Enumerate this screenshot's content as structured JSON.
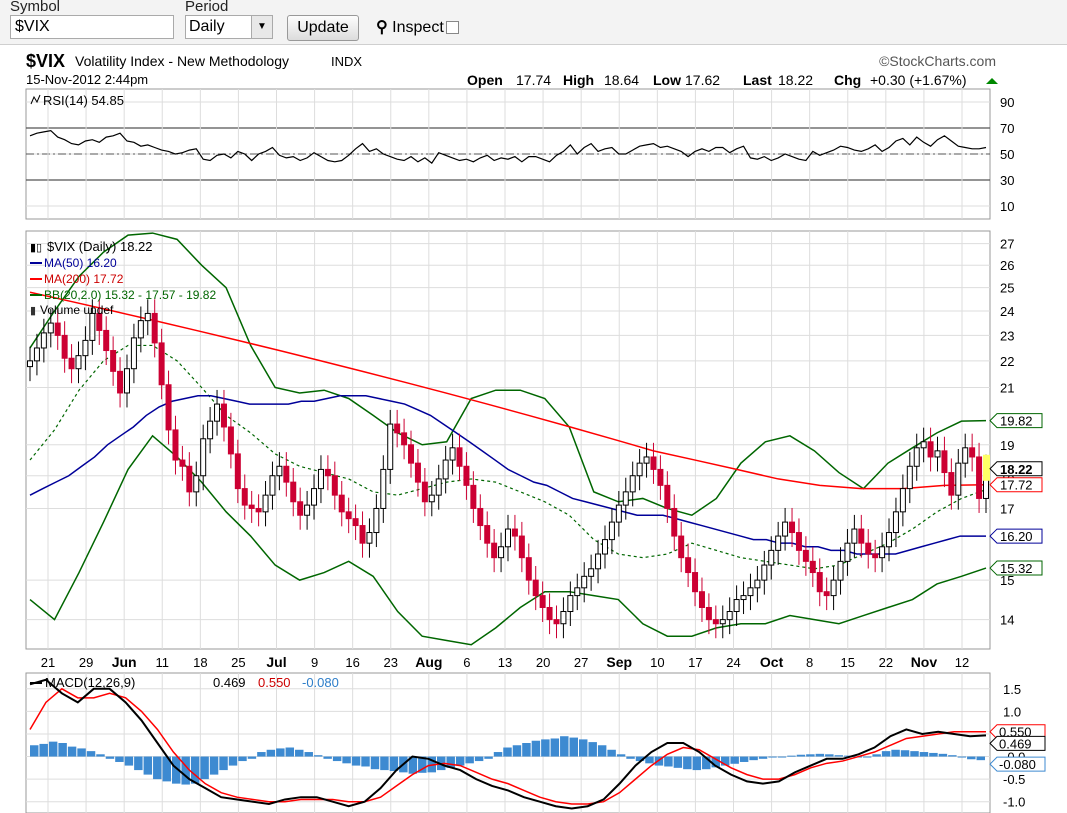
{
  "toolbar": {
    "symbol_label": "Symbol",
    "symbol_value": "$VIX",
    "period_label": "Period",
    "period_value": "Daily",
    "update_label": "Update",
    "inspect_label": "Inspect"
  },
  "header": {
    "symbol": "$VIX",
    "name": "Volatility Index - New Methodology",
    "exchange": "INDX",
    "date": "15-Nov-2012 2:44pm",
    "brand": "©StockCharts.com",
    "open_label": "Open",
    "open": "17.74",
    "high_label": "High",
    "high": "18.64",
    "low_label": "Low",
    "low": "17.62",
    "last_label": "Last",
    "last": "18.22",
    "chg_label": "Chg",
    "chg": "+0.30 (+1.67%)"
  },
  "colors": {
    "up": "#000000",
    "down": "#cc0033",
    "ma50": "#000099",
    "ma200": "#ff0000",
    "bb": "#006600",
    "hist": "#3d8ad1"
  },
  "chart_data": [
    {
      "type": "line",
      "title": "RSI(14) 54.85",
      "rsi_value": "54.85",
      "yticks": [
        "90",
        "70",
        "50",
        "30",
        "10"
      ],
      "ylim": [
        0,
        100
      ],
      "levels": [
        70,
        30
      ],
      "values": [
        64,
        66,
        67,
        68,
        63,
        61,
        58,
        57,
        60,
        61,
        59,
        63,
        64,
        66,
        60,
        59,
        56,
        57,
        55,
        53,
        52,
        50,
        51,
        53,
        54,
        46,
        45,
        49,
        50,
        47,
        52,
        50,
        45,
        50,
        52,
        55,
        49,
        47,
        48,
        45,
        47,
        51,
        48,
        45,
        44,
        45,
        49,
        54,
        58,
        52,
        54,
        50,
        48,
        46,
        45,
        48,
        44,
        47,
        43,
        51,
        49,
        47,
        45,
        46,
        44,
        47,
        49,
        45,
        47,
        46,
        48,
        44,
        48,
        48,
        46,
        44,
        49,
        52,
        57,
        50,
        55,
        58,
        52,
        54,
        55,
        50,
        50,
        53,
        56,
        57,
        58,
        55,
        56,
        54,
        52,
        48,
        52,
        54,
        52,
        55,
        55,
        51,
        54,
        56,
        47,
        46,
        48,
        45,
        47,
        50,
        48,
        46,
        45,
        52,
        49,
        51,
        53,
        56,
        55,
        53,
        52,
        54,
        57,
        52,
        55,
        60,
        62,
        57,
        63,
        59,
        56,
        61,
        64,
        60,
        56,
        55,
        54,
        54,
        55
      ]
    },
    {
      "type": "candlestick",
      "title": "$VIX (Daily) 18.22",
      "legend": [
        "MA(50) 16.20",
        "MA(200) 17.72",
        "BB(20,2.0) 15.32 - 17.57 - 19.82",
        "Volume undef"
      ],
      "yticks": [
        27,
        26,
        25,
        24,
        23,
        22,
        21,
        19,
        18,
        17,
        15,
        14
      ],
      "ylim": [
        13.3,
        27.6
      ],
      "y_scale": "log",
      "xticks": [
        "21",
        "29",
        "Jun",
        "11",
        "18",
        "25",
        "Jul",
        "9",
        "16",
        "23",
        "Aug",
        "6",
        "13",
        "20",
        "27",
        "Sep",
        "10",
        "17",
        "24",
        "Oct",
        "8",
        "15",
        "22",
        "Nov",
        "12"
      ],
      "last_badges": {
        "bb_upper": "19.82",
        "last": "18.22",
        "ma200": "17.72",
        "ma50": "16.20",
        "bb_lower": "15.32"
      },
      "close": [
        22.0,
        22.5,
        23.1,
        23.5,
        23.0,
        22.1,
        21.7,
        22.2,
        22.8,
        23.9,
        23.2,
        22.4,
        21.6,
        20.8,
        21.7,
        22.9,
        23.6,
        23.9,
        22.7,
        21.1,
        19.5,
        18.5,
        18.3,
        17.5,
        18.0,
        19.2,
        19.8,
        20.4,
        19.6,
        18.7,
        17.6,
        17.1,
        17.0,
        16.9,
        17.4,
        18.0,
        18.3,
        17.8,
        17.2,
        16.8,
        17.1,
        17.6,
        18.2,
        18.0,
        17.4,
        16.9,
        16.7,
        16.5,
        16.0,
        16.3,
        17.0,
        18.2,
        19.7,
        19.4,
        19.0,
        18.4,
        17.8,
        17.2,
        17.4,
        17.9,
        18.5,
        18.9,
        18.3,
        17.7,
        17.0,
        16.5,
        16.0,
        15.6,
        15.9,
        16.4,
        16.2,
        15.6,
        15.0,
        14.6,
        14.3,
        14.0,
        13.9,
        14.2,
        14.6,
        14.8,
        15.1,
        15.3,
        15.7,
        16.1,
        16.6,
        17.1,
        17.5,
        18.0,
        18.4,
        18.6,
        18.2,
        17.7,
        17.0,
        16.2,
        15.6,
        15.2,
        14.7,
        14.3,
        14.0,
        13.9,
        14.0,
        14.2,
        14.5,
        14.6,
        14.8,
        15.0,
        15.4,
        15.8,
        16.2,
        16.6,
        16.3,
        15.8,
        15.5,
        15.2,
        14.7,
        14.6,
        15.0,
        15.5,
        16.0,
        16.4,
        16.0,
        15.7,
        15.6,
        15.9,
        16.3,
        16.9,
        17.6,
        18.3,
        18.9,
        19.1,
        18.6,
        18.8,
        18.1,
        17.4,
        18.4,
        18.9,
        18.6,
        17.3,
        18.22
      ],
      "ma50": [
        17.4,
        17.6,
        17.8,
        18.0,
        18.3,
        18.6,
        19.0,
        19.3,
        19.6,
        20.0,
        20.3,
        20.5,
        20.6,
        20.7,
        20.7,
        20.6,
        20.5,
        20.4,
        20.4,
        20.4,
        20.4,
        20.5,
        20.5,
        20.6,
        20.7,
        20.7,
        20.7,
        20.6,
        20.5,
        20.4,
        20.2,
        20.0,
        19.7,
        19.4,
        19.1,
        18.8,
        18.5,
        18.2,
        18.0,
        17.8,
        17.7,
        17.5,
        17.3,
        17.2,
        17.1,
        17.0,
        16.9,
        16.8,
        16.8,
        16.8,
        16.7,
        16.6,
        16.5,
        16.4,
        16.3,
        16.2,
        16.1,
        16.1,
        16.0,
        16.0,
        15.9,
        15.9,
        15.8,
        15.8,
        15.7,
        15.7,
        15.7,
        15.7,
        15.8,
        15.9,
        16.0,
        16.1,
        16.2,
        16.2,
        16.2
      ],
      "ma200": [
        24.8,
        24.4,
        24.0,
        23.6,
        23.2,
        22.8,
        22.4,
        22.0,
        21.6,
        21.2,
        20.8,
        20.4,
        20.0,
        19.6,
        19.2,
        18.8,
        18.5,
        18.2,
        17.9,
        17.7,
        17.6,
        17.6,
        17.7,
        17.72
      ],
      "bb_upper": [
        22.5,
        24.0,
        25.5,
        26.6,
        27.4,
        27.5,
        27.2,
        26.0,
        25.0,
        22.6,
        21.0,
        20.8,
        20.9,
        20.6,
        20.0,
        19.4,
        19.0,
        19.1,
        20.6,
        20.9,
        20.9,
        20.6,
        19.6,
        17.5,
        17.2,
        17.3,
        17.0,
        16.8,
        17.3,
        18.4,
        19.1,
        19.3,
        18.8,
        18.1,
        17.6,
        18.4,
        18.9,
        19.4,
        19.8,
        19.82
      ],
      "bb_mid": [
        18.5,
        19.5,
        20.9,
        22.0,
        22.6,
        22.6,
        22.0,
        21.0,
        20.0,
        19.4,
        18.7,
        18.3,
        18.1,
        17.9,
        17.5,
        17.4,
        17.6,
        17.8,
        17.9,
        17.8,
        17.5,
        17.2,
        16.8,
        16.1,
        15.7,
        15.6,
        15.7,
        16.0,
        15.8,
        15.6,
        15.5,
        15.4,
        15.3,
        15.4,
        15.7,
        16.0,
        16.4,
        16.9,
        17.3,
        17.57
      ],
      "bb_lower": [
        14.5,
        14.0,
        15.2,
        16.6,
        18.2,
        19.3,
        18.6,
        17.8,
        16.9,
        16.2,
        15.4,
        15.0,
        15.2,
        15.5,
        15.1,
        14.2,
        13.6,
        13.5,
        13.4,
        13.8,
        14.3,
        14.7,
        14.7,
        14.6,
        14.5,
        13.9,
        13.6,
        13.6,
        13.8,
        13.9,
        13.9,
        14.1,
        14.0,
        13.9,
        14.1,
        14.3,
        14.5,
        14.9,
        15.1,
        15.32
      ]
    },
    {
      "type": "line+bar",
      "title": "MACD(12,26,9)",
      "macd": "0.469",
      "signal": "0.550",
      "hist": "-0.080",
      "yticks": [
        "1.5",
        "1.0",
        "0.5",
        "-0.0",
        "-0.5",
        "-1.0"
      ],
      "ylim": [
        -1.25,
        1.85
      ],
      "macd_values": [
        1.6,
        1.7,
        1.4,
        1.2,
        1.5,
        1.5,
        1.2,
        0.8,
        0.3,
        -0.2,
        -0.5,
        -0.7,
        -0.9,
        -0.95,
        -1.0,
        -1.05,
        -0.95,
        -0.9,
        -0.9,
        -1.0,
        -1.1,
        -1.0,
        -0.7,
        -0.3,
        0.0,
        -0.05,
        -0.2,
        -0.3,
        -0.5,
        -0.65,
        -0.75,
        -0.9,
        -1.0,
        -1.1,
        -1.15,
        -1.1,
        -0.95,
        -0.6,
        -0.2,
        0.1,
        0.3,
        0.3,
        0.1,
        -0.2,
        -0.4,
        -0.55,
        -0.6,
        -0.55,
        -0.35,
        -0.2,
        -0.05,
        -0.05,
        0.05,
        0.2,
        0.45,
        0.6,
        0.5,
        0.55,
        0.5,
        0.45,
        0.469
      ],
      "signal_values": [
        0.6,
        1.2,
        1.5,
        1.3,
        1.3,
        1.4,
        1.3,
        1.0,
        0.6,
        0.1,
        -0.3,
        -0.6,
        -0.8,
        -0.9,
        -0.95,
        -1.0,
        -1.0,
        -0.95,
        -0.95,
        -0.95,
        -1.0,
        -1.0,
        -0.9,
        -0.65,
        -0.4,
        -0.2,
        -0.15,
        -0.2,
        -0.35,
        -0.5,
        -0.6,
        -0.75,
        -0.9,
        -1.0,
        -1.05,
        -1.05,
        -1.0,
        -0.8,
        -0.5,
        -0.2,
        0.05,
        0.2,
        0.15,
        -0.05,
        -0.25,
        -0.4,
        -0.5,
        -0.5,
        -0.4,
        -0.25,
        -0.15,
        -0.1,
        0.0,
        0.1,
        0.25,
        0.4,
        0.45,
        0.5,
        0.55,
        0.55,
        0.55
      ],
      "hist_values": [
        0.25,
        0.28,
        0.33,
        0.3,
        0.22,
        0.18,
        0.12,
        0.05,
        -0.05,
        -0.12,
        -0.2,
        -0.3,
        -0.4,
        -0.5,
        -0.55,
        -0.6,
        -0.62,
        -0.6,
        -0.5,
        -0.4,
        -0.3,
        -0.2,
        -0.1,
        -0.05,
        0.1,
        0.15,
        0.18,
        0.2,
        0.15,
        0.1,
        0.03,
        -0.05,
        -0.1,
        -0.15,
        -0.2,
        -0.22,
        -0.28,
        -0.3,
        -0.32,
        -0.35,
        -0.38,
        -0.36,
        -0.35,
        -0.3,
        -0.25,
        -0.2,
        -0.15,
        -0.1,
        -0.05,
        0.1,
        0.2,
        0.25,
        0.3,
        0.35,
        0.38,
        0.4,
        0.45,
        0.42,
        0.38,
        0.32,
        0.25,
        0.15,
        0.05,
        -0.05,
        -0.1,
        -0.15,
        -0.2,
        -0.22,
        -0.25,
        -0.28,
        -0.3,
        -0.28,
        -0.24,
        -0.2,
        -0.16,
        -0.12,
        -0.08,
        -0.05,
        -0.02,
        0.0,
        0.02,
        0.04,
        0.05,
        0.06,
        0.05,
        0.03,
        0.02,
        0.0,
        -0.02,
        0.05,
        0.12,
        0.15,
        0.14,
        0.12,
        0.1,
        0.08,
        0.06,
        0.03,
        -0.02,
        -0.06,
        -0.08
      ]
    }
  ]
}
